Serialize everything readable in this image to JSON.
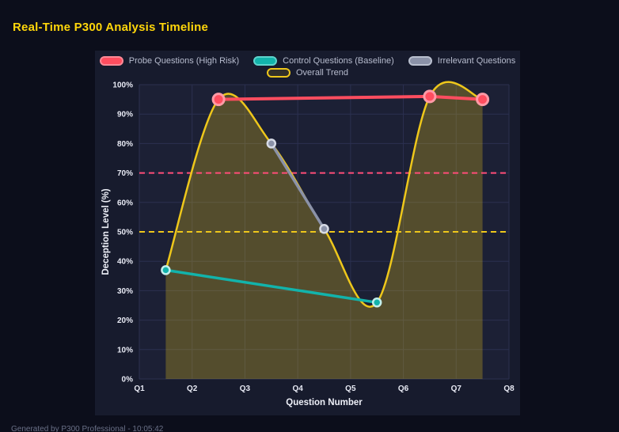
{
  "page": {
    "title": "Real-Time P300 Analysis Timeline",
    "footer": "Generated by P300 Professional - 10:05:42"
  },
  "chart_data": {
    "type": "line",
    "title": "Real-Time P300 Analysis Timeline",
    "xlabel": "Question Number",
    "ylabel": "Deception Level (%)",
    "x_range": [
      1,
      8
    ],
    "y_range": [
      0,
      100
    ],
    "x_ticks": [
      "Q1",
      "Q2",
      "Q3",
      "Q4",
      "Q5",
      "Q6",
      "Q7",
      "Q8"
    ],
    "y_ticks": [
      "0%",
      "10%",
      "20%",
      "30%",
      "40%",
      "50%",
      "60%",
      "70%",
      "80%",
      "90%",
      "100%"
    ],
    "grid": true,
    "legend_position": "top",
    "series": [
      {
        "name": "Probe Questions (High Risk)",
        "type": "line",
        "color": "#ff4d5f",
        "line_width": 4,
        "point_radius": 7,
        "point_stroke": "#ff9aa6",
        "point_stroke_width": 3,
        "swatch_fill": "#ff4d5f",
        "swatch_border": "#ff8a97",
        "points": [
          [
            2.5,
            95
          ],
          [
            6.5,
            96
          ],
          [
            7.5,
            95
          ]
        ]
      },
      {
        "name": "Control Questions (Baseline)",
        "type": "line",
        "color": "#12b3ab",
        "line_width": 3.5,
        "point_radius": 5,
        "point_stroke": "#c4efec",
        "point_stroke_width": 2.5,
        "swatch_fill": "#12b3ab",
        "swatch_border": "#5ed3cc",
        "points": [
          [
            1.5,
            37
          ],
          [
            5.5,
            26
          ]
        ]
      },
      {
        "name": "Irrelevant Questions",
        "type": "line",
        "color": "#8b92a8",
        "line_width": 3.5,
        "point_radius": 5,
        "point_stroke": "#d7dbe6",
        "point_stroke_width": 2.5,
        "swatch_fill": "#8b92a8",
        "swatch_border": "#b9bfce",
        "points": [
          [
            3.5,
            80
          ],
          [
            4.5,
            51
          ]
        ]
      },
      {
        "name": "Overall Trend",
        "type": "spline",
        "color": "#eec71b",
        "line_width": 2.5,
        "point_radius": 0,
        "fill_to_zero": true,
        "fill_color": "rgba(238,199,27,0.27)",
        "swatch_fill": "rgba(238,199,27,0.12)",
        "swatch_border": "#eec71b",
        "points": [
          [
            1.5,
            37
          ],
          [
            2.5,
            95
          ],
          [
            3.5,
            80
          ],
          [
            4.5,
            51
          ],
          [
            5.5,
            26
          ],
          [
            6.5,
            96
          ],
          [
            7.5,
            95
          ]
        ]
      }
    ],
    "reference_lines": [
      {
        "label": "threshold-70",
        "y": 70,
        "color": "#ff4d78",
        "style": "dashed"
      },
      {
        "label": "threshold-50",
        "y": 50,
        "color": "#eec71b",
        "style": "dashed"
      }
    ]
  }
}
